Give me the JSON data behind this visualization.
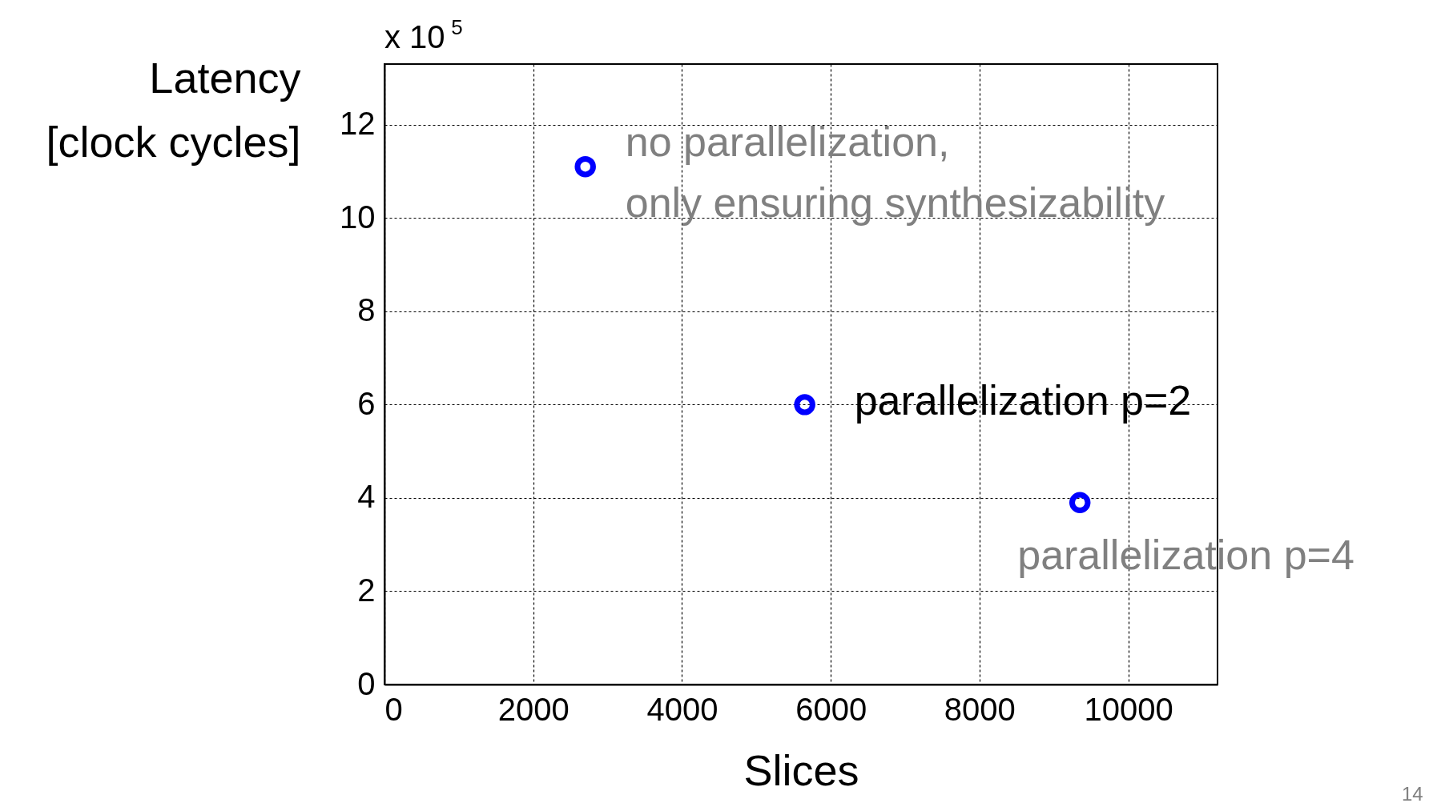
{
  "chart_data": {
    "type": "scatter",
    "xlabel": "Slices",
    "ylabel": "Latency\n[clock cycles]",
    "x": [
      2700,
      5650,
      9350
    ],
    "series": [
      {
        "color": "#0000ff",
        "values": [
          11.1,
          6.0,
          3.9
        ]
      }
    ],
    "xlim": [
      0,
      11200
    ],
    "xticks": [
      0,
      2000,
      4000,
      6000,
      8000,
      10000
    ],
    "ylim": [
      0,
      13.3
    ],
    "yticks": [
      0,
      2,
      4,
      6,
      8,
      10,
      12
    ],
    "grid": true,
    "marker": "circle",
    "annotations": [
      {
        "text": "no parallelization,\nonly ensuring synthesizability",
        "x": 2700,
        "y": 11.1
      },
      {
        "text": "parallelization p=2",
        "x": 5650,
        "y": 6.0
      },
      {
        "text": "parallelization p=4",
        "x": 9350,
        "y": 3.9
      },
      "x 10$^{5}$",
      "14"
    ]
  }
}
